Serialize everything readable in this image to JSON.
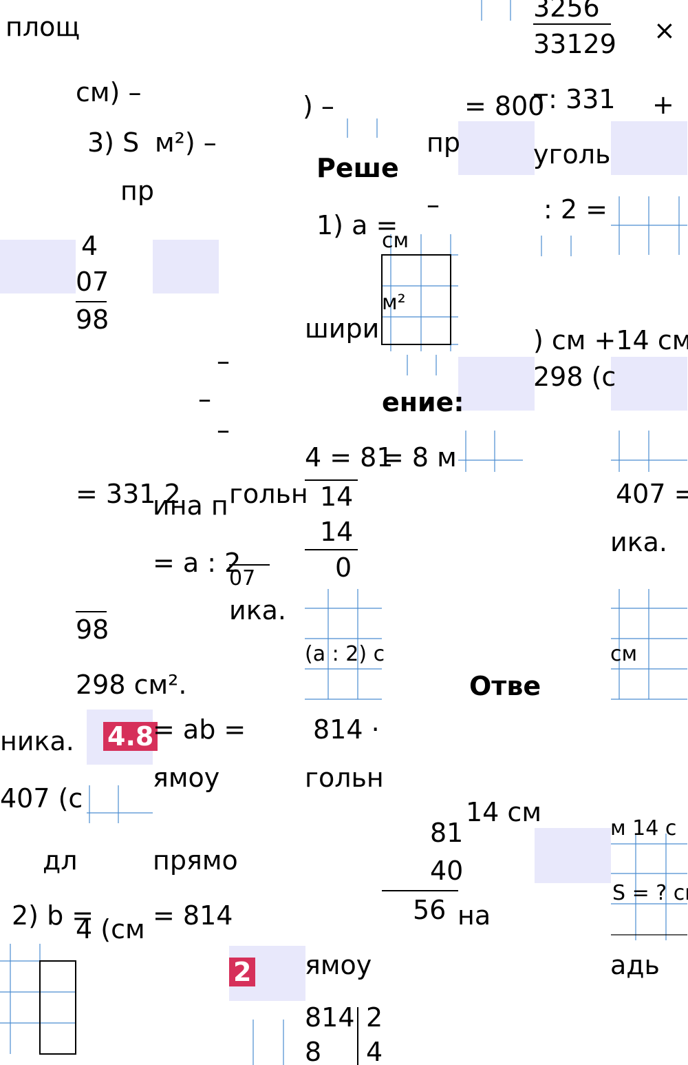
{
  "fragments": [
    "площ",
    "3256",
    "33129",
    "×",
    "см) –",
    ") –",
    "= 800",
    "т: 331",
    "+",
    "3) S",
    "м²) –",
    "пр",
    "Реше",
    "уголь",
    "пр",
    "–",
    "1) a =",
    ": 2 =",
    "см",
    "4",
    "07",
    "м²",
    "98",
    "шири",
    ") см +14 см",
    "298 (с",
    "–",
    "–",
    "ение:",
    "–",
    "4 = 81",
    "= 8 м",
    "= 331 2",
    "ина п",
    "гольн",
    "14",
    "407 =",
    "14",
    "= a : 2",
    "0",
    "ика.",
    "07",
    "ика.",
    "98",
    "(a : 2) c",
    "см",
    "298 см².",
    "Отве",
    "ника.",
    "4.8",
    "= ab =",
    "814 ·",
    "ямоу",
    "гольн",
    "407 (с",
    "14 см",
    "81",
    "м 14 с",
    "дл",
    "прямо",
    "40",
    "S = ? см",
    "2) b =",
    "4 (см",
    "= 814",
    "56",
    "на",
    "2",
    "ямоу",
    "адь",
    "814",
    "2",
    "8",
    "4"
  ]
}
